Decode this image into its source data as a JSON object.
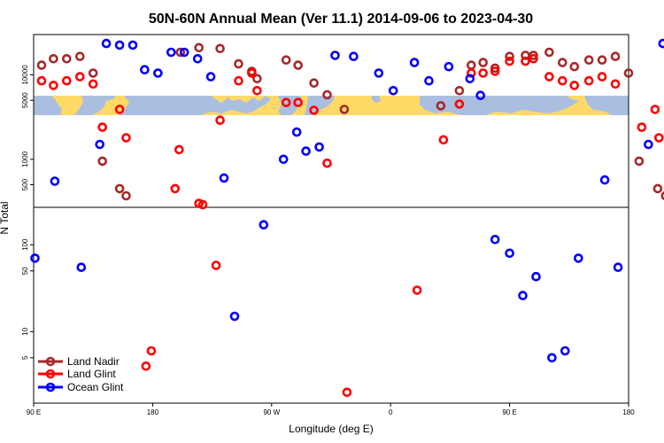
{
  "chart_data": {
    "type": "scatter",
    "title": "50N-60N Annual Mean (Ver 11.1)   2014-09-06 to 2023-04-30",
    "xlabel": "Longitude (deg E)",
    "ylabel": "N Total",
    "x_ticks": [
      {
        "lon": 90,
        "label": "90 E"
      },
      {
        "lon": 180,
        "label": "180"
      },
      {
        "lon": 270,
        "label": "90 W"
      },
      {
        "lon": 360,
        "label": "0"
      },
      {
        "lon": 450,
        "label": "90 E"
      },
      {
        "lon": 540,
        "label": "180"
      }
    ],
    "x_range_deg_east_unwrapped": [
      90,
      540
    ],
    "y_scale": "log",
    "y_ticks": [
      5,
      10,
      50,
      100,
      500,
      1000,
      5000,
      10000
    ],
    "legend_position": "bottom-left",
    "colors": {
      "land_nadir": "#a52a2a",
      "land_glint": "#ff0000",
      "ocean_glint": "#0000ff",
      "land": "#ffd966",
      "ocean": "#aabfdf"
    },
    "series": [
      {
        "name": "Land Nadir",
        "color": "#a52a2a",
        "points": [
          [
            96,
            13000
          ],
          [
            105,
            15500
          ],
          [
            115,
            15500
          ],
          [
            125,
            16500
          ],
          [
            135,
            10500
          ],
          [
            142,
            950
          ],
          [
            155,
            450
          ],
          [
            160,
            370
          ],
          [
            201,
            18500
          ],
          [
            215,
            21000
          ],
          [
            231,
            20500
          ],
          [
            245,
            13500
          ],
          [
            255,
            11000
          ],
          [
            259,
            9000
          ],
          [
            281,
            15000
          ],
          [
            290,
            13000
          ],
          [
            302,
            8000
          ],
          [
            312,
            5800
          ],
          [
            325,
            3900
          ],
          [
            398,
            4300
          ],
          [
            412,
            6500
          ],
          [
            421,
            13000
          ],
          [
            430,
            14000
          ],
          [
            439,
            12000
          ],
          [
            450,
            16500
          ],
          [
            462,
            17000
          ],
          [
            468,
            17000
          ],
          [
            480,
            18500
          ],
          [
            490,
            14000
          ],
          [
            499,
            12500
          ],
          [
            510,
            15000
          ],
          [
            520,
            15000
          ],
          [
            530,
            16500
          ],
          [
            540,
            10500
          ],
          [
            548,
            950
          ],
          [
            562,
            450
          ],
          [
            568,
            370
          ]
        ]
      },
      {
        "name": "Land Glint",
        "color": "#ff0000",
        "points": [
          [
            96,
            8500
          ],
          [
            105,
            7500
          ],
          [
            115,
            8500
          ],
          [
            125,
            9500
          ],
          [
            135,
            7800
          ],
          [
            142,
            2400
          ],
          [
            155,
            3900
          ],
          [
            160,
            1800
          ],
          [
            175,
            4
          ],
          [
            179,
            6
          ],
          [
            197,
            450
          ],
          [
            200,
            1300
          ],
          [
            215,
            300
          ],
          [
            218,
            290
          ],
          [
            228,
            58
          ],
          [
            231,
            2900
          ],
          [
            245,
            8500
          ],
          [
            255,
            10500
          ],
          [
            259,
            6500
          ],
          [
            281,
            4700
          ],
          [
            290,
            4700
          ],
          [
            302,
            3800
          ],
          [
            312,
            900
          ],
          [
            327,
            2
          ],
          [
            380,
            30
          ],
          [
            400,
            1700
          ],
          [
            412,
            4500
          ],
          [
            421,
            10500
          ],
          [
            430,
            10500
          ],
          [
            439,
            11000
          ],
          [
            450,
            14500
          ],
          [
            462,
            14500
          ],
          [
            468,
            15500
          ],
          [
            480,
            9500
          ],
          [
            490,
            8500
          ],
          [
            499,
            7500
          ],
          [
            510,
            8500
          ],
          [
            520,
            9500
          ],
          [
            530,
            7800
          ],
          [
            550,
            2400
          ],
          [
            560,
            3900
          ],
          [
            563,
            1800
          ],
          [
            588,
            4
          ]
        ]
      },
      {
        "name": "Ocean Glint",
        "color": "#0000ff",
        "points": [
          [
            91,
            70
          ],
          [
            106,
            550
          ],
          [
            126,
            55
          ],
          [
            140,
            1500
          ],
          [
            145,
            23500
          ],
          [
            155,
            22500
          ],
          [
            165,
            22500
          ],
          [
            174,
            11500
          ],
          [
            184,
            10500
          ],
          [
            194,
            18500
          ],
          [
            204,
            18500
          ],
          [
            214,
            15500
          ],
          [
            224,
            9500
          ],
          [
            234,
            600
          ],
          [
            242,
            15
          ],
          [
            264,
            170
          ],
          [
            279,
            1000
          ],
          [
            289,
            2100
          ],
          [
            296,
            1250
          ],
          [
            306,
            1400
          ],
          [
            318,
            17000
          ],
          [
            332,
            16500
          ],
          [
            351,
            10500
          ],
          [
            362,
            6500
          ],
          [
            378,
            14000
          ],
          [
            389,
            8500
          ],
          [
            404,
            12500
          ],
          [
            420,
            9000
          ],
          [
            428,
            5700
          ],
          [
            439,
            115
          ],
          [
            450,
            80
          ],
          [
            460,
            26
          ],
          [
            470,
            43
          ],
          [
            482,
            5
          ],
          [
            492,
            6
          ],
          [
            502,
            70
          ],
          [
            522,
            570
          ],
          [
            532,
            55
          ],
          [
            555,
            1500
          ],
          [
            566,
            23500
          ],
          [
            576,
            22500
          ],
          [
            586,
            22500
          ],
          [
            597,
            11500
          ]
        ]
      }
    ]
  }
}
